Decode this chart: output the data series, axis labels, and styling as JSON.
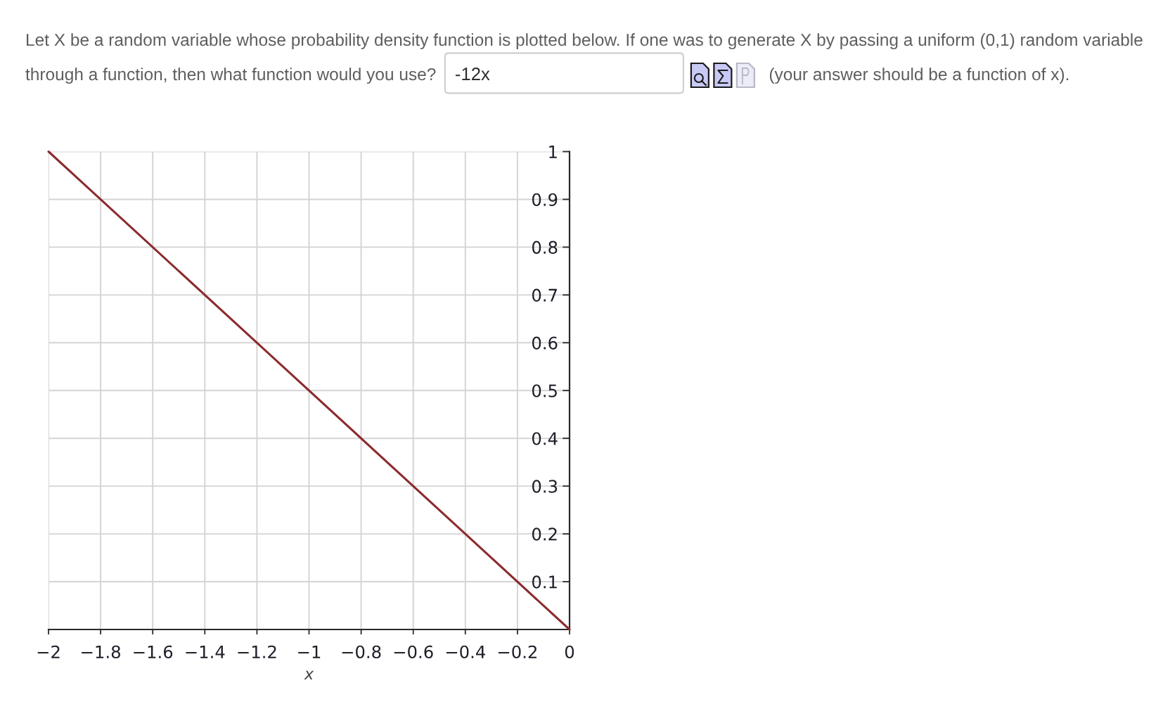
{
  "chart_data": {
    "type": "line",
    "annotations": [
      "Let X be a random variable whose probability density function is plotted below. If one was to generate X by passing a uniform (0,1) random variable",
      "through a function, then what function would you use?",
      "-12x",
      "(your answer should be a function of x)."
    ],
    "x": [
      -2,
      0
    ],
    "values": [
      1,
      0
    ],
    "color": "#8b2b2e",
    "xlim": [
      -2,
      0
    ],
    "ylim": [
      0,
      1
    ],
    "xticks": [
      {
        "value": -2,
        "label": "−2"
      },
      {
        "value": -1.8,
        "label": "−1.8"
      },
      {
        "value": -1.6,
        "label": "−1.6"
      },
      {
        "value": -1.4,
        "label": "−1.4"
      },
      {
        "value": -1.2,
        "label": "−1.2"
      },
      {
        "value": -1,
        "label": "−1"
      },
      {
        "value": -0.8,
        "label": "−0.8"
      },
      {
        "value": -0.6,
        "label": "−0.6"
      },
      {
        "value": -0.4,
        "label": "−0.4"
      },
      {
        "value": -0.2,
        "label": "−0.2"
      },
      0
    ],
    "yticks": [
      0.1,
      0.2,
      0.3,
      0.4,
      0.5,
      0.6,
      0.7,
      0.8,
      0.9,
      1
    ],
    "xlabel": "x",
    "grid": true
  }
}
